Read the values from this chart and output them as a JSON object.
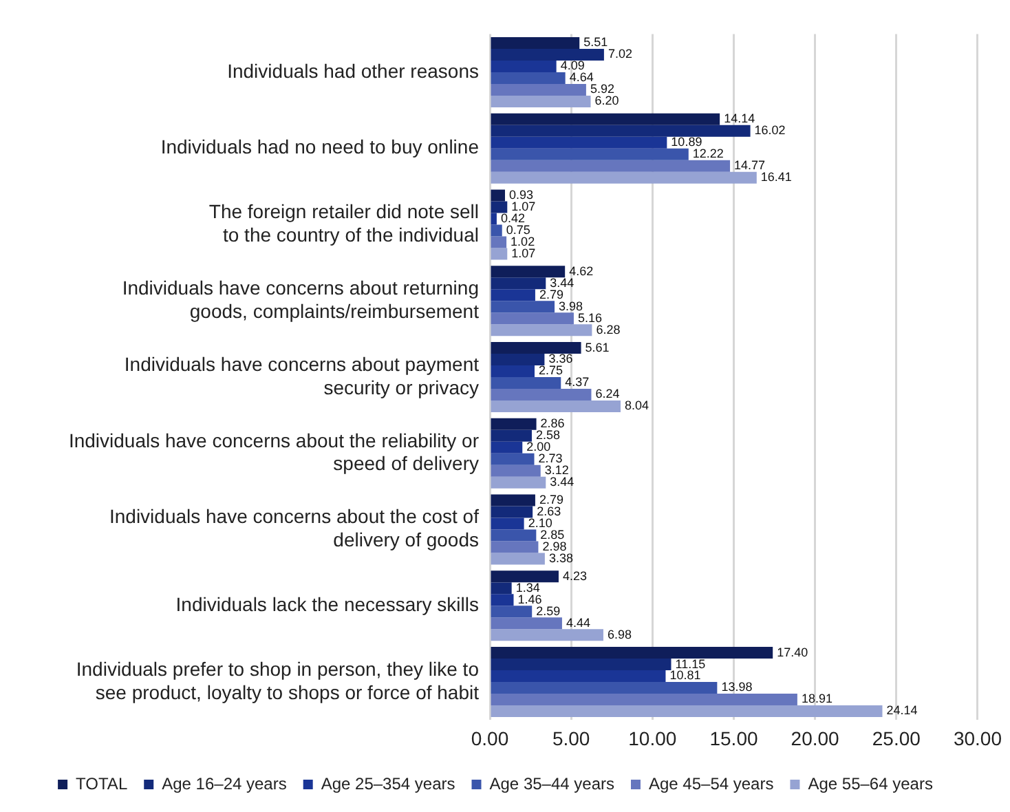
{
  "chart_data": {
    "type": "bar",
    "orientation": "horizontal",
    "categories": [
      "Individuals had other reasons",
      "Individuals had no need to buy online",
      "The foreign retailer did note sell\nto the country of the individual",
      "Individuals have concerns about returning\ngoods, complaints/reimbursement",
      "Individuals have concerns about payment\nsecurity or privacy",
      "Individuals have concerns about the reliability or\nspeed of delivery",
      "Individuals have concerns about the cost of\ndelivery of goods",
      "Individuals lack the necessary skills",
      "Individuals prefer to shop in person, they like to\nsee product, loyalty to shops or force of habit"
    ],
    "series": [
      {
        "name": "TOTAL",
        "color": "#0f1e5a",
        "values": [
          5.51,
          14.14,
          0.93,
          4.62,
          5.61,
          2.86,
          2.79,
          4.23,
          17.4
        ],
        "value_labels": [
          "5.51",
          "14.14",
          "0.93",
          "4.62",
          "5.61",
          "2.86",
          "2.79",
          "4.23",
          "17.40"
        ]
      },
      {
        "name": "Age 16–24 years",
        "color": "#132a7a",
        "values": [
          7.02,
          16.02,
          1.07,
          3.44,
          3.36,
          2.58,
          2.63,
          1.34,
          11.15
        ],
        "value_labels": [
          "7.02",
          "16.02",
          "1.07",
          "3.44",
          "3.36",
          "2.58",
          "2.63",
          "1.34",
          "11.15"
        ]
      },
      {
        "name": "Age 25–354 years",
        "color": "#1a3596",
        "values": [
          4.09,
          10.89,
          0.42,
          2.79,
          2.75,
          2.0,
          2.1,
          1.46,
          10.81
        ],
        "value_labels": [
          "4.09",
          "10.89",
          "0.42",
          "2.79",
          "2.75",
          "2.00",
          "2.10",
          "1.46",
          "10.81"
        ]
      },
      {
        "name": "Age 35–44 years",
        "color": "#3a55ab",
        "values": [
          4.64,
          12.22,
          0.75,
          3.98,
          4.37,
          2.73,
          2.85,
          2.59,
          13.98
        ],
        "value_labels": [
          "4.64",
          "12.22",
          "0.75",
          "3.98",
          "4.37",
          "2.73",
          "2.85",
          "2.59",
          "13.98"
        ]
      },
      {
        "name": "Age 45–54 years",
        "color": "#6676be",
        "values": [
          5.92,
          14.77,
          1.02,
          5.16,
          6.24,
          3.12,
          2.98,
          4.44,
          18.91
        ],
        "value_labels": [
          "5.92",
          "14.77",
          "1.02",
          "5.16",
          "6.24",
          "3.12",
          "2.98",
          "4.44",
          "18.91"
        ]
      },
      {
        "name": "Age 55–64 years",
        "color": "#96a3d3",
        "values": [
          6.2,
          16.41,
          1.07,
          6.28,
          8.04,
          3.44,
          3.38,
          6.98,
          24.14
        ],
        "value_labels": [
          "6.20",
          "16.41",
          "1.07",
          "6.28",
          "8.04",
          "3.44",
          "3.38",
          "6.98",
          "24.14"
        ]
      }
    ],
    "xlim": [
      0,
      30
    ],
    "xticks": [
      {
        "value": 0,
        "label": "0.00"
      },
      {
        "value": 5,
        "label": "5.00"
      },
      {
        "value": 10,
        "label": "10.00"
      },
      {
        "value": 15,
        "label": "15.00"
      },
      {
        "value": 20,
        "label": "20.00"
      },
      {
        "value": 25,
        "label": "25.00"
      },
      {
        "value": 30,
        "label": "30.00"
      }
    ],
    "grid": "x",
    "legend": "bottom"
  }
}
